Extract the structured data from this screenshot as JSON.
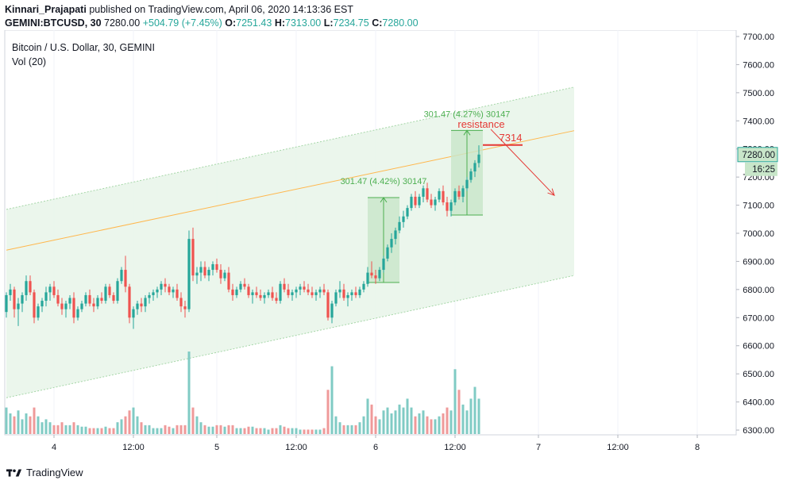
{
  "header": {
    "author": "Kinnari_Prajapati",
    "published_on": "published on TradingView.com, April 06, 2020 14:13:36 EST",
    "symbol": "GEMINI:BTCUSD, 30",
    "last": "7280.00",
    "change": "+504.79 (+7.45%)",
    "o_label": "O:",
    "o": "7251.43",
    "h_label": "H:",
    "h": "7313.00",
    "l_label": "L:",
    "l": "7234.75",
    "c_label": "C:",
    "c": "7280.00"
  },
  "legend": {
    "title": "Bitcoin / U.S. Dollar, 30, GEMINI",
    "vol": "Vol (20)"
  },
  "footer": {
    "brand": "TradingView"
  },
  "colors": {
    "up": "#26a69a",
    "down": "#ef5350",
    "vol_up": "#80cbc4",
    "vol_down": "#ef9a9a",
    "channel_fill": "#e8f5e9",
    "channel_border": "#a5d6a7",
    "mid_line": "#ffb74d",
    "annotation": "#e53935",
    "measure": "#4caf50"
  },
  "chart_data": {
    "type": "candlestick",
    "y_axis_ticks": [
      "6300.00",
      "6400.00",
      "6500.00",
      "6600.00",
      "6700.00",
      "6800.00",
      "6900.00",
      "7000.00",
      "7100.00",
      "7200.00",
      "7300.00",
      "7400.00",
      "7500.00",
      "7600.00",
      "7700.00"
    ],
    "x_axis_ticks": [
      "4",
      "12:00",
      "5",
      "12:00",
      "6",
      "12:00",
      "7",
      "12:00",
      "8"
    ],
    "last_price_label": "7280.00",
    "countdown_label": "16:25",
    "annotations": {
      "resistance_text": "resistance",
      "resistance_level": "7314",
      "measure1_text": "301.47 (4.42%) 30147",
      "measure2_text": "301.47 (4.27%) 30147"
    },
    "channel": {
      "upper": [
        [
          0,
          7085
        ],
        [
          143,
          7520
        ]
      ],
      "lower": [
        [
          0,
          6415
        ],
        [
          143,
          6850
        ]
      ],
      "mid": [
        [
          0,
          6940
        ],
        [
          143,
          7365
        ]
      ]
    },
    "measure1": {
      "x0": 91,
      "x1": 99,
      "y_low": 6825,
      "y_high": 7127
    },
    "measure2": {
      "x0": 112,
      "x1": 120,
      "y_low": 7065,
      "y_high": 7366
    },
    "resistance_line": {
      "x0": 120,
      "x1": 130,
      "y": 7314
    },
    "projection_arrow": {
      "x0": 122,
      "y0": 7370,
      "x1": 138,
      "y1": 7135
    },
    "vol_max": 350,
    "candles": [
      [
        6720,
        6790,
        6700,
        6780,
        90
      ],
      [
        6780,
        6820,
        6760,
        6800,
        70
      ],
      [
        6800,
        6810,
        6700,
        6730,
        60
      ],
      [
        6730,
        6770,
        6670,
        6750,
        80
      ],
      [
        6750,
        6790,
        6720,
        6780,
        50
      ],
      [
        6780,
        6850,
        6760,
        6830,
        70
      ],
      [
        6830,
        6850,
        6780,
        6790,
        60
      ],
      [
        6790,
        6800,
        6680,
        6700,
        90
      ],
      [
        6700,
        6750,
        6690,
        6740,
        60
      ],
      [
        6740,
        6770,
        6720,
        6760,
        40
      ],
      [
        6760,
        6810,
        6740,
        6790,
        50
      ],
      [
        6790,
        6820,
        6760,
        6810,
        40
      ],
      [
        6810,
        6830,
        6770,
        6780,
        30
      ],
      [
        6780,
        6800,
        6740,
        6750,
        30
      ],
      [
        6750,
        6770,
        6710,
        6730,
        40
      ],
      [
        6730,
        6760,
        6700,
        6750,
        30
      ],
      [
        6750,
        6780,
        6730,
        6770,
        30
      ],
      [
        6770,
        6790,
        6680,
        6700,
        40
      ],
      [
        6700,
        6740,
        6690,
        6730,
        30
      ],
      [
        6730,
        6760,
        6720,
        6750,
        25
      ],
      [
        6750,
        6790,
        6740,
        6780,
        25
      ],
      [
        6780,
        6800,
        6740,
        6750,
        20
      ],
      [
        6750,
        6770,
        6720,
        6740,
        20
      ],
      [
        6740,
        6780,
        6730,
        6770,
        20
      ],
      [
        6770,
        6790,
        6750,
        6760,
        20
      ],
      [
        6760,
        6820,
        6750,
        6810,
        25
      ],
      [
        6810,
        6820,
        6770,
        6780,
        20
      ],
      [
        6780,
        6790,
        6750,
        6760,
        20
      ],
      [
        6760,
        6840,
        6750,
        6830,
        40
      ],
      [
        6830,
        6880,
        6820,
        6870,
        50
      ],
      [
        6870,
        6920,
        6790,
        6810,
        60
      ],
      [
        6810,
        6820,
        6680,
        6700,
        80
      ],
      [
        6700,
        6740,
        6660,
        6730,
        90
      ],
      [
        6730,
        6760,
        6710,
        6750,
        60
      ],
      [
        6750,
        6770,
        6720,
        6740,
        40
      ],
      [
        6740,
        6780,
        6720,
        6770,
        30
      ],
      [
        6770,
        6790,
        6750,
        6780,
        30
      ],
      [
        6780,
        6800,
        6760,
        6790,
        20
      ],
      [
        6790,
        6810,
        6770,
        6800,
        20
      ],
      [
        6800,
        6830,
        6780,
        6820,
        20
      ],
      [
        6820,
        6840,
        6790,
        6810,
        30
      ],
      [
        6810,
        6820,
        6780,
        6790,
        25
      ],
      [
        6790,
        6810,
        6770,
        6800,
        20
      ],
      [
        6800,
        6820,
        6760,
        6770,
        30
      ],
      [
        6770,
        6790,
        6720,
        6740,
        30
      ],
      [
        6740,
        6760,
        6700,
        6730,
        30
      ],
      [
        6730,
        7010,
        6720,
        6980,
        280
      ],
      [
        6980,
        7020,
        6830,
        6850,
        90
      ],
      [
        6850,
        6880,
        6820,
        6860,
        60
      ],
      [
        6860,
        6900,
        6830,
        6880,
        40
      ],
      [
        6880,
        6900,
        6840,
        6850,
        30
      ],
      [
        6850,
        6880,
        6830,
        6870,
        25
      ],
      [
        6870,
        6900,
        6850,
        6890,
        25
      ],
      [
        6890,
        6910,
        6860,
        6870,
        30
      ],
      [
        6870,
        6890,
        6820,
        6840,
        30
      ],
      [
        6840,
        6870,
        6830,
        6860,
        25
      ],
      [
        6860,
        6880,
        6790,
        6800,
        30
      ],
      [
        6800,
        6820,
        6760,
        6780,
        30
      ],
      [
        6780,
        6810,
        6770,
        6800,
        20
      ],
      [
        6800,
        6830,
        6790,
        6820,
        20
      ],
      [
        6820,
        6840,
        6800,
        6810,
        20
      ],
      [
        6810,
        6820,
        6770,
        6780,
        25
      ],
      [
        6780,
        6800,
        6750,
        6790,
        25
      ],
      [
        6790,
        6810,
        6770,
        6780,
        20
      ],
      [
        6780,
        6800,
        6760,
        6770,
        20
      ],
      [
        6770,
        6790,
        6750,
        6780,
        20
      ],
      [
        6780,
        6800,
        6770,
        6790,
        15
      ],
      [
        6790,
        6810,
        6760,
        6770,
        20
      ],
      [
        6770,
        6790,
        6750,
        6760,
        20
      ],
      [
        6760,
        6830,
        6750,
        6820,
        30
      ],
      [
        6820,
        6840,
        6790,
        6800,
        25
      ],
      [
        6800,
        6820,
        6770,
        6780,
        20
      ],
      [
        6780,
        6800,
        6760,
        6790,
        20
      ],
      [
        6790,
        6810,
        6770,
        6800,
        20
      ],
      [
        6800,
        6820,
        6780,
        6810,
        15
      ],
      [
        6810,
        6830,
        6790,
        6800,
        15
      ],
      [
        6800,
        6820,
        6780,
        6790,
        15
      ],
      [
        6790,
        6810,
        6770,
        6780,
        15
      ],
      [
        6780,
        6800,
        6760,
        6790,
        15
      ],
      [
        6790,
        6810,
        6770,
        6800,
        15
      ],
      [
        6800,
        6820,
        6780,
        6790,
        20
      ],
      [
        6790,
        6800,
        6690,
        6700,
        150
      ],
      [
        6700,
        6760,
        6680,
        6750,
        230
      ],
      [
        6750,
        6800,
        6740,
        6790,
        60
      ],
      [
        6790,
        6830,
        6770,
        6800,
        40
      ],
      [
        6800,
        6820,
        6760,
        6770,
        30
      ],
      [
        6770,
        6790,
        6740,
        6780,
        30
      ],
      [
        6780,
        6800,
        6760,
        6790,
        30
      ],
      [
        6790,
        6810,
        6770,
        6780,
        30
      ],
      [
        6780,
        6810,
        6770,
        6800,
        40
      ],
      [
        6800,
        6830,
        6790,
        6820,
        60
      ],
      [
        6820,
        6880,
        6810,
        6860,
        120
      ],
      [
        6860,
        6900,
        6840,
        6850,
        100
      ],
      [
        6850,
        6870,
        6820,
        6840,
        60
      ],
      [
        6840,
        6880,
        6830,
        6870,
        50
      ],
      [
        6870,
        6920,
        6860,
        6910,
        80
      ],
      [
        6910,
        6960,
        6900,
        6950,
        90
      ],
      [
        6950,
        7000,
        6930,
        6980,
        70
      ],
      [
        6980,
        7020,
        6960,
        7010,
        80
      ],
      [
        7010,
        7060,
        7000,
        7040,
        100
      ],
      [
        7040,
        7080,
        7020,
        7060,
        90
      ],
      [
        7060,
        7100,
        7050,
        7090,
        120
      ],
      [
        7090,
        7140,
        7080,
        7130,
        90
      ],
      [
        7130,
        7150,
        7090,
        7100,
        60
      ],
      [
        7100,
        7140,
        7090,
        7130,
        70
      ],
      [
        7130,
        7170,
        7110,
        7160,
        80
      ],
      [
        7160,
        7180,
        7110,
        7120,
        60
      ],
      [
        7120,
        7140,
        7090,
        7100,
        50
      ],
      [
        7100,
        7130,
        7080,
        7120,
        50
      ],
      [
        7120,
        7160,
        7110,
        7150,
        60
      ],
      [
        7150,
        7170,
        7100,
        7110,
        70
      ],
      [
        7110,
        7130,
        7060,
        7080,
        90
      ],
      [
        7080,
        7120,
        7060,
        7110,
        80
      ],
      [
        7110,
        7160,
        7100,
        7150,
        220
      ],
      [
        7150,
        7170,
        7120,
        7130,
        150
      ],
      [
        7130,
        7170,
        7110,
        7160,
        100
      ],
      [
        7160,
        7200,
        7150,
        7190,
        80
      ],
      [
        7190,
        7230,
        7180,
        7220,
        120
      ],
      [
        7220,
        7260,
        7200,
        7250,
        160
      ],
      [
        7250,
        7313,
        7234,
        7280,
        120
      ]
    ]
  }
}
